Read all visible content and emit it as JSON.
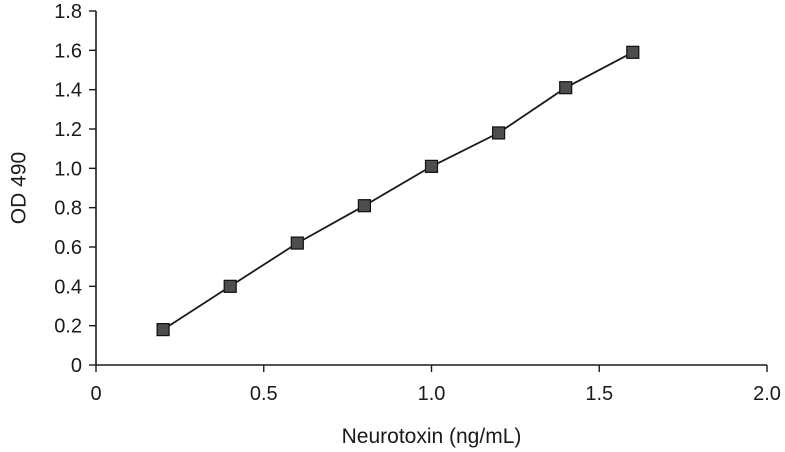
{
  "chart_data": {
    "type": "line",
    "xlabel": "Neurotoxin (ng/mL)",
    "ylabel": "OD 490",
    "xlim": [
      0,
      2.0
    ],
    "ylim": [
      0,
      1.8
    ],
    "x_ticks": [
      0,
      0.5,
      1.0,
      1.5,
      2.0
    ],
    "x_tick_labels": [
      "0",
      "0.5",
      "1.0",
      "1.5",
      "2.0"
    ],
    "y_ticks": [
      0,
      0.2,
      0.4,
      0.6,
      0.8,
      1.0,
      1.2,
      1.4,
      1.6,
      1.8
    ],
    "y_tick_labels": [
      "0",
      "0.2",
      "0.4",
      "0.6",
      "0.8",
      "1.0",
      "1.2",
      "1.4",
      "1.6",
      "1.8"
    ],
    "grid": false,
    "legend": "none",
    "marker": "square",
    "marker_color": "#4d4d4d",
    "line_color": "#1a1a1a",
    "series": [
      {
        "x": [
          0.2,
          0.4,
          0.6,
          0.8,
          1.0,
          1.2,
          1.4,
          1.6
        ],
        "y": [
          0.18,
          0.4,
          0.62,
          0.81,
          1.01,
          1.18,
          1.41,
          1.59
        ]
      }
    ]
  }
}
